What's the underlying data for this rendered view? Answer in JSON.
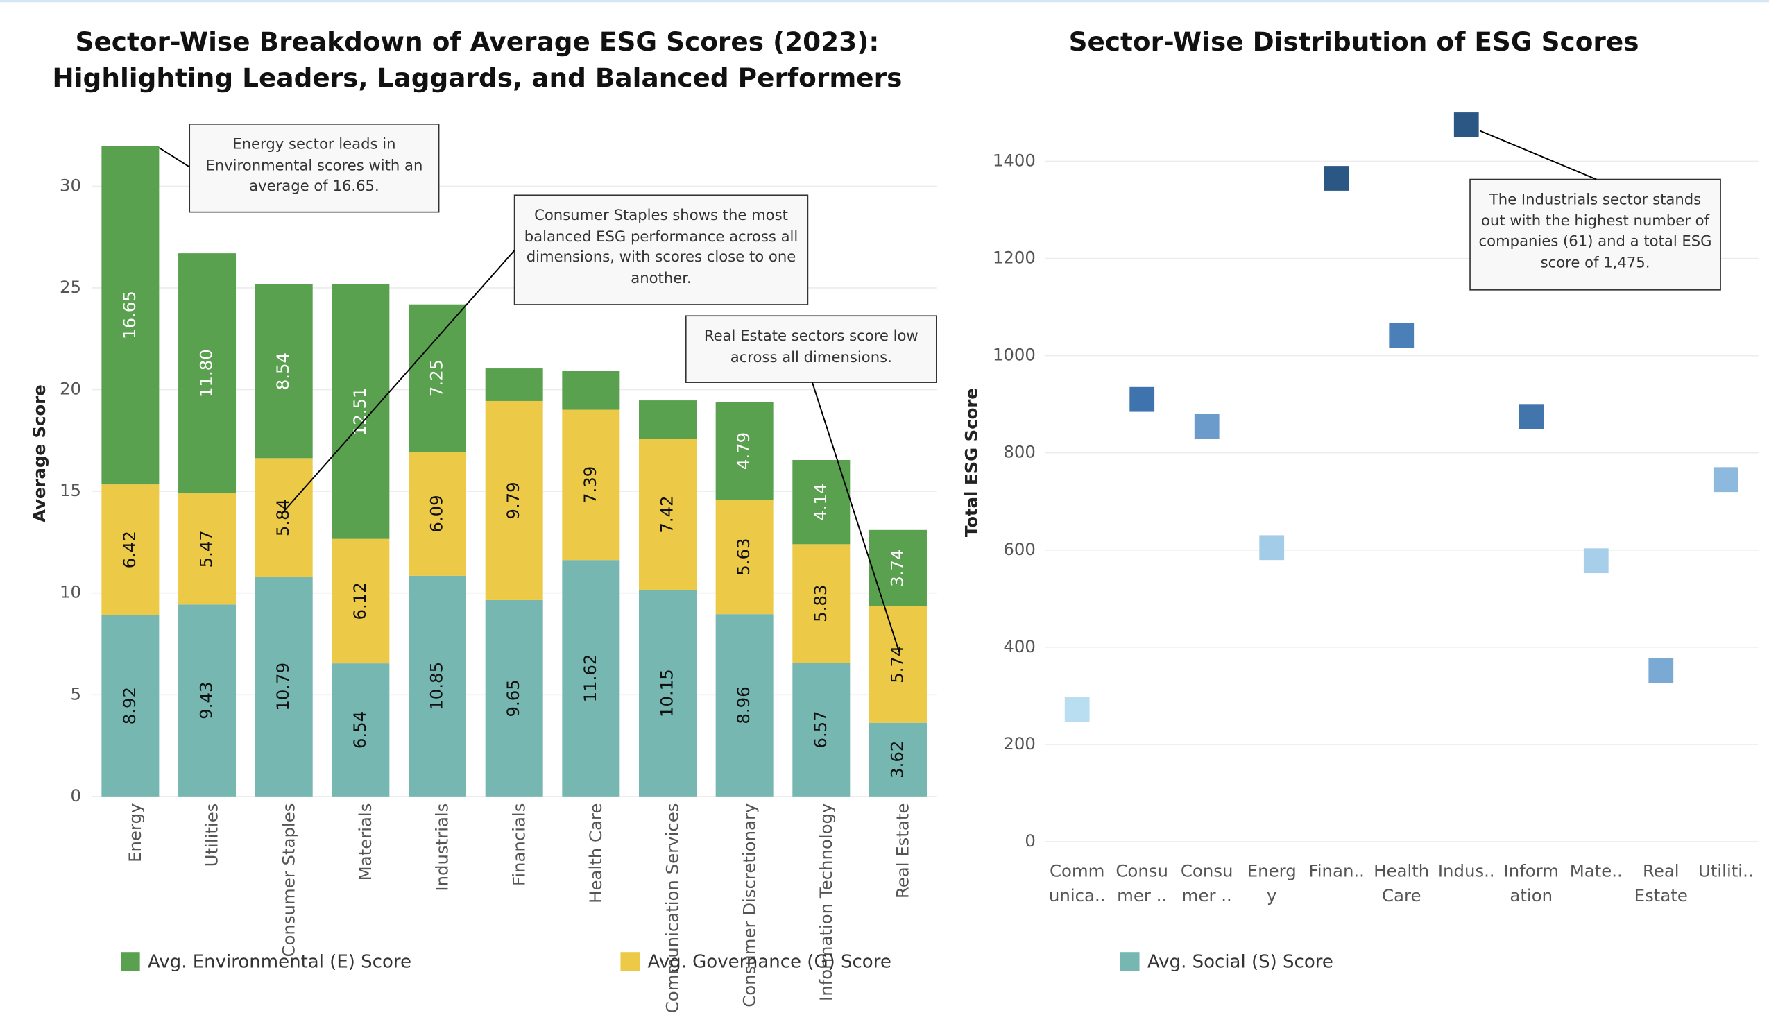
{
  "chart_data": [
    {
      "type": "bar",
      "stacked": true,
      "title": "Sector-Wise Breakdown of Average ESG Scores (2023): Highlighting Leaders, Laggards, and Balanced Performers",
      "y_label": "Average Score",
      "categories": [
        "Energy",
        "Utilities",
        "Consumer Staples",
        "Materials",
        "Industrials",
        "Financials",
        "Health Care",
        "Communication Services",
        "Consumer Discretionary",
        "Information Technology",
        "Real Estate"
      ],
      "series": [
        {
          "name": "Avg. Social (S) Score",
          "color": "#76b7b2",
          "values": [
            8.92,
            9.43,
            10.79,
            6.54,
            10.85,
            9.65,
            11.62,
            10.15,
            8.96,
            6.57,
            3.62
          ],
          "value_labels": [
            "8.92",
            "9.43",
            "10.79",
            "6.54",
            "10.85",
            "9.65",
            "11.62",
            "10.15",
            "8.96",
            "6.57",
            "3.62"
          ]
        },
        {
          "name": "Avg. Governance (G) Score",
          "color": "#edc948",
          "values": [
            6.42,
            5.47,
            5.84,
            6.12,
            6.09,
            9.79,
            7.39,
            7.42,
            5.63,
            5.83,
            5.74
          ],
          "value_labels": [
            "6.42",
            "5.47",
            "5.84",
            "6.12",
            "6.09",
            "9.79",
            "7.39",
            "7.42",
            "5.63",
            "5.83",
            "5.74"
          ]
        },
        {
          "name": "Avg. Environmental (E) Score",
          "color": "#59a14f",
          "values": [
            16.65,
            11.8,
            8.54,
            12.51,
            7.25,
            1.6,
            1.9,
            1.9,
            4.79,
            4.14,
            3.74
          ],
          "value_labels": [
            "16.65",
            "11.80",
            "8.54",
            "12.51",
            "7.25",
            null,
            null,
            null,
            "4.79",
            "4.14",
            "3.74"
          ]
        }
      ],
      "ylim": [
        0,
        32.5
      ],
      "yticks": [
        0,
        5,
        10,
        15,
        20,
        25,
        30
      ],
      "grid": true,
      "annotations": [
        "Energy sector leads in Environmental scores with an average of 16.65.",
        "Consumer Staples shows the most balanced ESG performance across all dimensions, with scores close to one another.",
        "Real Estate sectors score low across all dimensions."
      ]
    },
    {
      "type": "scatter",
      "title": "Sector-Wise Distribution of ESG Scores",
      "y_label": "Total ESG Score",
      "categories": [
        "Comm unica..",
        "Consu mer ..",
        "Consu mer ..",
        "Energy",
        "Finan..",
        "Health Care",
        "Indus..",
        "Inform ation ..",
        "Mate..",
        "Real Estate",
        "Utiliti.."
      ],
      "values": [
        272,
        910,
        855,
        605,
        1365,
        1042,
        1475,
        875,
        578,
        352,
        745
      ],
      "colors": [
        "#b9ddf1",
        "#3f73ad",
        "#6a9bcb",
        "#a3cce9",
        "#2a5783",
        "#4a7fb8",
        "#2a5783",
        "#4375ad",
        "#a7cfea",
        "#7aa9d4",
        "#8db9de"
      ],
      "ylim": [
        -30,
        1530
      ],
      "yticks": [
        0,
        200,
        400,
        600,
        800,
        1000,
        1200,
        1400
      ],
      "grid": true,
      "annotations": [
        "The Industrials sector stands out with the highest number of companies (61) and a total ESG score of 1,475."
      ]
    }
  ]
}
